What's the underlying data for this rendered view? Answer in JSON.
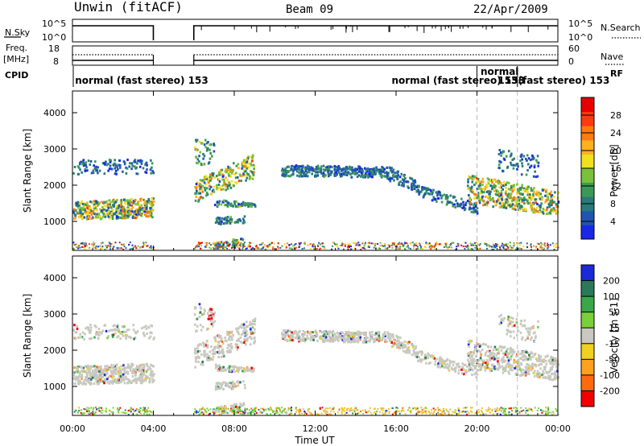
{
  "header": {
    "station": "Unwin (fitACF)",
    "beam": "Beam 09",
    "date": "22/Apr/2009"
  },
  "side_labels": {
    "nsky": "N.Sky",
    "freq_line1": "Freq.",
    "freq_line2": "[MHz]",
    "cpid": "CPID",
    "nsearch": "N.Search",
    "nave": "Nave",
    "rf": "RF"
  },
  "axis_labels": {
    "nsky_top": "10^5",
    "nsky_bottom": "10^0",
    "nsearch_top": "10^5",
    "nsearch_bottom": "10^0",
    "freq_top": "18",
    "freq_bottom": "8",
    "nave_top": "60",
    "nave_bottom": "0"
  },
  "cpid_segments": [
    {
      "text": "normal (fast stereo)  153",
      "x_hour": 0.05
    },
    {
      "text": "normal (fast stereo)  153",
      "x_hour": 15.7
    },
    {
      "text": "normal",
      "x_hour": 20.1
    },
    {
      "text": "153",
      "x_hour": 20.95
    },
    {
      "text": "(fast stereo)  153",
      "x_hour": 21.95
    }
  ],
  "chart_data": [
    {
      "type": "heatmap",
      "name": "power",
      "xlabel": "Time UT",
      "ylabel": "Slant Range [km]",
      "xlim_hours": [
        0,
        24
      ],
      "ylim_km": [
        200,
        4600
      ],
      "x_ticks": [
        "00:00",
        "04:00",
        "08:00",
        "12:00",
        "16:00",
        "20:00",
        "00:00"
      ],
      "x_tick_hours": [
        0,
        4,
        8,
        12,
        16,
        20,
        24
      ],
      "y_ticks": [
        1000,
        2000,
        3000,
        4000
      ],
      "colorbar_label": "Power [dB]",
      "colorbar_ticks": [
        4,
        8,
        12,
        16,
        20,
        24,
        28
      ],
      "colorbar_range": [
        0,
        32
      ],
      "colors": [
        "#1a28e6",
        "#1f55b0",
        "#2a7a7a",
        "#3a9a55",
        "#7ac03a",
        "#f0e020",
        "#ffb020",
        "#ff7a10",
        "#ff3a10",
        "#e60000"
      ]
    },
    {
      "type": "heatmap",
      "name": "velocity",
      "xlabel": "Time UT",
      "ylabel": "Slant Range [km]",
      "xlim_hours": [
        0,
        24
      ],
      "ylim_km": [
        200,
        4600
      ],
      "x_ticks": [
        "00:00",
        "04:00",
        "08:00",
        "12:00",
        "16:00",
        "20:00",
        "00:00"
      ],
      "x_tick_hours": [
        0,
        4,
        8,
        12,
        16,
        20,
        24
      ],
      "y_ticks": [
        1000,
        2000,
        3000,
        4000
      ],
      "colorbar_label": "Velocity [m s-1]",
      "colorbar_ticks": [
        "200",
        "100",
        "50",
        "15",
        "-15",
        "-50",
        "-100",
        "-200"
      ],
      "colors": [
        "#1a2ad6",
        "#2a7a5a",
        "#3aa84a",
        "#7ad03a",
        "#c8c8c0",
        "#f0d020",
        "#ffa020",
        "#ff6a10",
        "#f00000"
      ]
    }
  ],
  "data_gap_hours": [
    4,
    6
  ]
}
